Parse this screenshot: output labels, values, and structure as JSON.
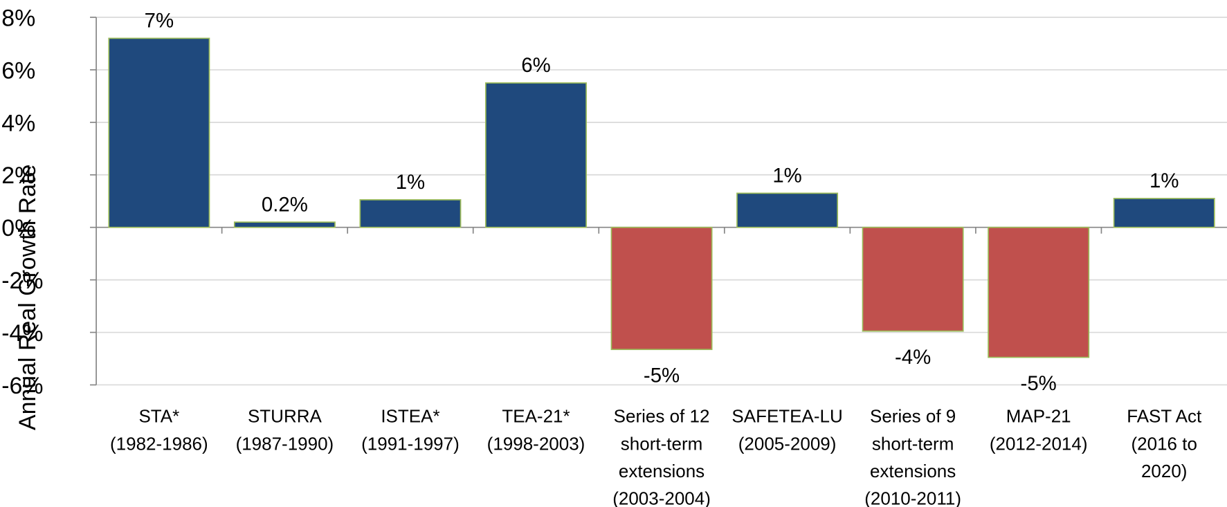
{
  "chart_data": {
    "type": "bar",
    "y_label": "Annual Real Growth Rate",
    "categories": [
      "STA*\n(1982-1986)",
      "STURRA\n(1987-1990)",
      "ISTEA*\n(1991-1997)",
      "TEA-21*\n(1998-2003)",
      "Series of 12\nshort-term\nextensions\n(2003-2004)",
      "SAFETEA-LU\n(2005-2009)",
      "Series of 9\nshort-term\nextensions\n(2010-2011)",
      "MAP-21\n(2012-2014)",
      "FAST Act\n(2016 to\n2020)"
    ],
    "values": [
      7.2,
      0.2,
      1.05,
      5.5,
      -4.65,
      1.3,
      -3.95,
      -4.95,
      1.1
    ],
    "value_labels": [
      "7%",
      "0.2%",
      "1%",
      "6%",
      "-5%",
      "1%",
      "-4%",
      "-5%",
      "1%"
    ],
    "color_positive": "#1f497d",
    "color_negative": "#c0504d",
    "edge_color": "#9bbb59",
    "ylim": [
      -6,
      8
    ],
    "yticks": [
      {
        "value": -6,
        "label": "-6%"
      },
      {
        "value": -4,
        "label": "-4%"
      },
      {
        "value": -2,
        "label": "-2%"
      },
      {
        "value": 0,
        "label": "0%"
      },
      {
        "value": 2,
        "label": "2%"
      },
      {
        "value": 4,
        "label": "4%"
      },
      {
        "value": 6,
        "label": "6%"
      },
      {
        "value": 8,
        "label": "8%"
      }
    ],
    "grid": true
  }
}
